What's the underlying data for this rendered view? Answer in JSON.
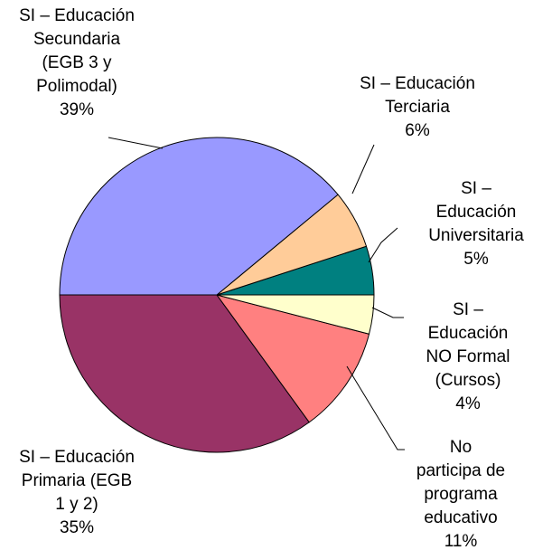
{
  "chart_data": {
    "type": "pie",
    "categories": [
      "SI – Educación\nSecundaria\n(EGB 3 y\nPolimodal)",
      "SI – Educación\nTerciaria",
      "SI – Educación\nUniversitaria",
      "SI – Educación\nNO Formal\n(Cursos)",
      "No participa de\nprograma\neducativo",
      "SI – Educación\nPrimaria (EGB\n1 y 2)"
    ],
    "values": [
      39,
      6,
      5,
      4,
      11,
      35
    ],
    "value_labels": [
      "39%",
      "6%",
      "5%",
      "4%",
      "11%",
      "35%"
    ],
    "colors": [
      "#9999ff",
      "#ffcc99",
      "#008080",
      "#ffffcc",
      "#ff8080",
      "#993366"
    ]
  }
}
